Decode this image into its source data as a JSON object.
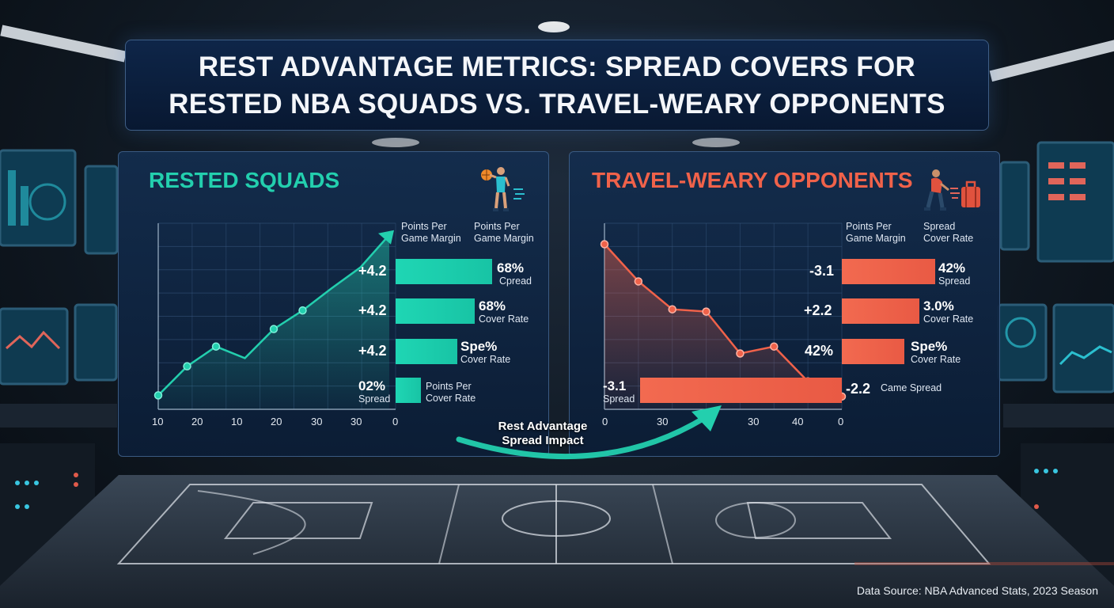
{
  "title": {
    "line1": "REST ADVANTAGE METRICS: SPREAD COVERS FOR",
    "line2": "RESTED NBA SQUADS VS. TRAVEL-WEARY OPPONENTS"
  },
  "impact_label": {
    "line1": "Rest Advantage",
    "line2": "Spread Impact"
  },
  "source": "Data Source: NBA Advanced Stats, 2023 Season",
  "colors": {
    "rested": "#23cfae",
    "weary": "#f0624a",
    "panel_border": "#3a5a82",
    "title_bg": "#0e264a"
  },
  "icons": {
    "rested": "basketball-player-icon",
    "weary": "tired-traveler-luggage-icon"
  },
  "chart_data": [
    {
      "type": "line",
      "title": "RESTED SQUADS",
      "x_ticks": [
        "10",
        "20",
        "10",
        "20",
        "30",
        "30",
        "0"
      ],
      "points": [
        {
          "x": 0,
          "y": 0.6
        },
        {
          "x": 1,
          "y": 1.85
        },
        {
          "x": 2,
          "y": 2.7
        },
        {
          "x": 3,
          "y": 2.2
        },
        {
          "x": 4,
          "y": 3.45
        },
        {
          "x": 5,
          "y": 4.25
        },
        {
          "x": 6,
          "y": 5.2
        },
        {
          "x": 7,
          "y": 6.1
        },
        {
          "x": 8,
          "y": 7.5
        }
      ],
      "column_headers": [
        {
          "line1": "Points Per",
          "line2": "Game Margin"
        },
        {
          "line1": "Points Per",
          "line2": "Game Margin"
        }
      ],
      "rows": [
        {
          "value_label": "+4.2",
          "bar_value": 1.0,
          "stat_big": "68%",
          "stat_small": "Cpread"
        },
        {
          "value_label": "+4.2",
          "bar_value": 0.82,
          "stat_big": "68%",
          "stat_small": "Cover Rate"
        },
        {
          "value_label": "+4.2",
          "bar_value": 0.64,
          "stat_big": "Spe%",
          "stat_small": "Cover Rate"
        },
        {
          "value_label": "02%",
          "value_sub": "Spread",
          "bar_value": 0.26,
          "stat_line1": "Points Per",
          "stat_line2": "Cover Rate"
        }
      ]
    },
    {
      "type": "line",
      "title": "TRAVEL-WEARY OPPONENTS",
      "x_ticks": [
        "0",
        "30",
        "30",
        "40",
        "0"
      ],
      "points": [
        {
          "x": 0,
          "y": 7.1
        },
        {
          "x": 1,
          "y": 5.5
        },
        {
          "x": 2,
          "y": 4.3
        },
        {
          "x": 3,
          "y": 4.2
        },
        {
          "x": 4,
          "y": 2.4
        },
        {
          "x": 5,
          "y": 2.7
        },
        {
          "x": 6,
          "y": 1.2
        },
        {
          "x": 7,
          "y": 0.55
        }
      ],
      "column_headers": [
        {
          "line1": "Points Per",
          "line2": "Game Margin"
        },
        {
          "line1": "Spread",
          "line2": "Cover Rate"
        }
      ],
      "rows": [
        {
          "value_label": "-3.1",
          "bar_value": 1.0,
          "stat_big": "42%",
          "stat_small": "Spread"
        },
        {
          "value_label": "+2.2",
          "bar_value": 0.83,
          "stat_big": "3.0%",
          "stat_small": "Cover Rate"
        },
        {
          "value_label": "42%",
          "bar_value": 0.67,
          "stat_big": "Spe%",
          "stat_small": "Cover Rate"
        },
        {
          "value_label": "-3.1",
          "value_sub": "Spread",
          "bar_value": 1.0,
          "stat_big": "-2.2",
          "stat_inline": "Came Spread"
        }
      ]
    }
  ]
}
